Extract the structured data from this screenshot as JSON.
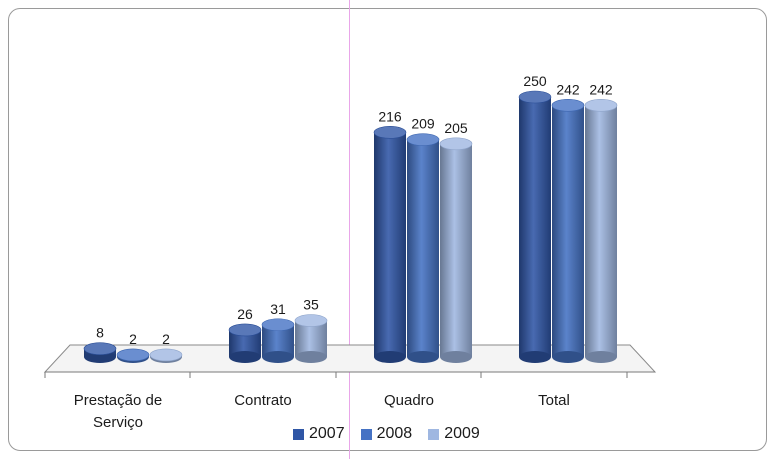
{
  "chart_data": {
    "type": "bar",
    "categories": [
      "Prestação de Serviço",
      "Contrato",
      "Quadro",
      "Total"
    ],
    "category_lines": [
      [
        "Prestação de",
        "Serviço"
      ],
      [
        "Contrato"
      ],
      [
        "Quadro"
      ],
      [
        "Total"
      ]
    ],
    "series": [
      {
        "name": "2007",
        "values": [
          8,
          26,
          216,
          250
        ],
        "color": "#2f56a6"
      },
      {
        "name": "2008",
        "values": [
          2,
          31,
          209,
          242
        ],
        "color": "#4572c4"
      },
      {
        "name": "2009",
        "values": [
          2,
          35,
          205,
          242
        ],
        "color": "#9fb7e1"
      }
    ],
    "legend_position": "bottom",
    "grid": false,
    "style": "3d-cylinder"
  }
}
